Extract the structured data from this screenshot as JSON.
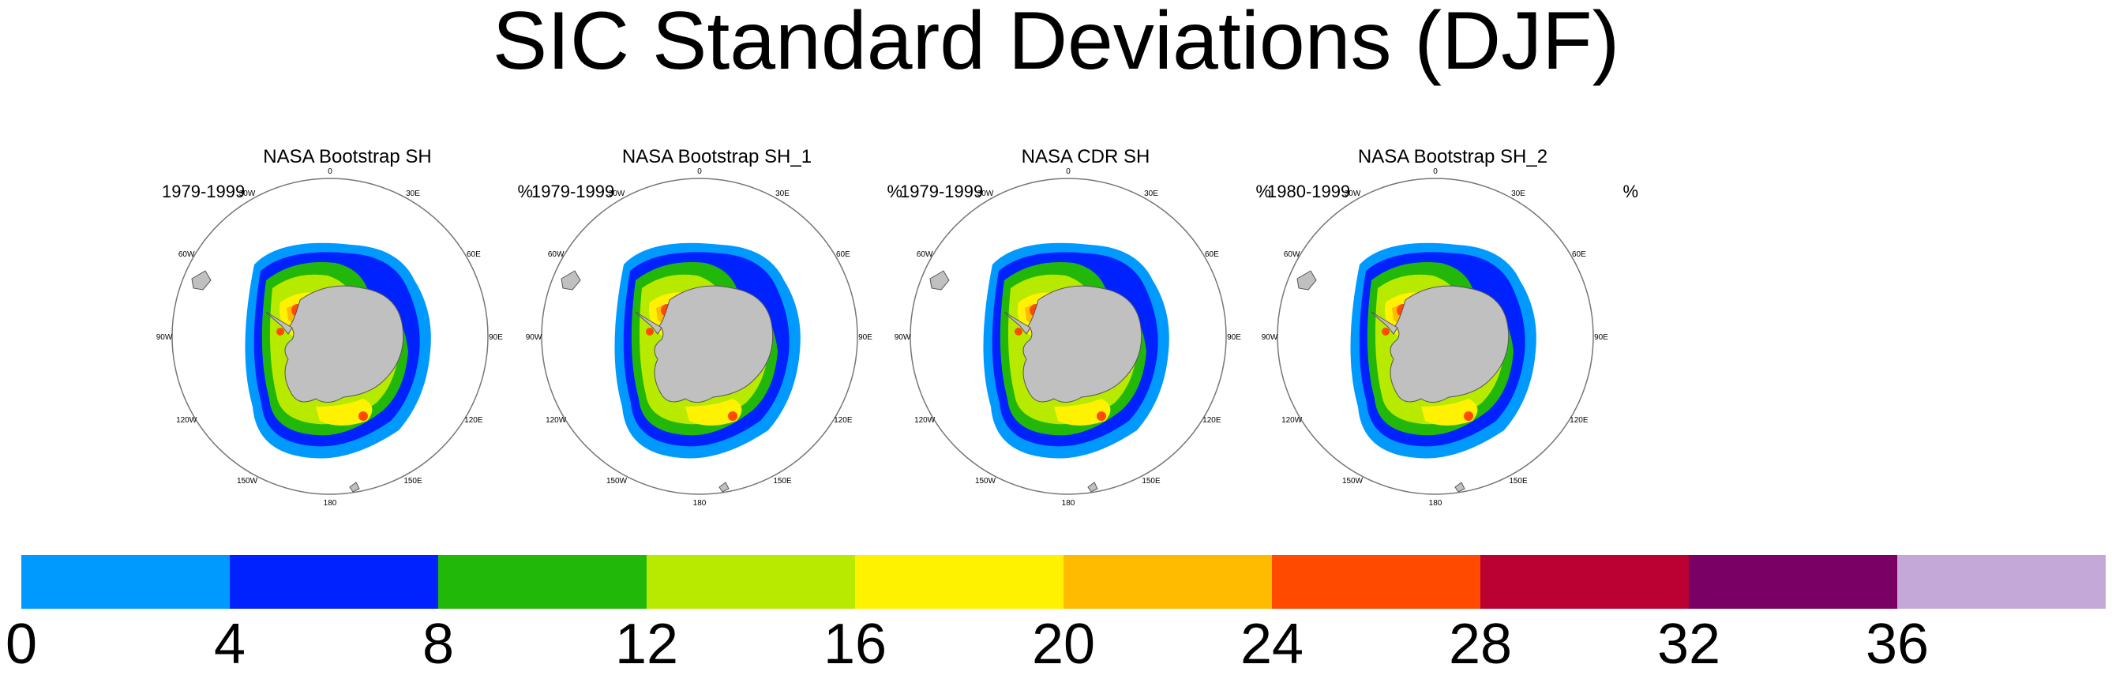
{
  "title": "SIC Standard Deviations (DJF)",
  "panels": [
    {
      "title": "NASA Bootstrap SH",
      "period": "1979-1999",
      "unit": "%"
    },
    {
      "title": "NASA Bootstrap SH_1",
      "period": "1979-1999",
      "unit": "%"
    },
    {
      "title": "NASA CDR SH",
      "period": "1979-1999",
      "unit": "%"
    },
    {
      "title": "NASA Bootstrap SH_2",
      "period": "1980-1999",
      "unit": "%"
    }
  ],
  "lon_labels": [
    "0",
    "30E",
    "60E",
    "90E",
    "120E",
    "150E",
    "180",
    "150W",
    "120W",
    "90W",
    "60W",
    "30W"
  ],
  "colorbar": {
    "colors": [
      "#009aff",
      "#0022ff",
      "#22b80a",
      "#b8ea00",
      "#fff200",
      "#ffbb00",
      "#ff4a00",
      "#bb0033",
      "#7a0066",
      "#c3a8d8"
    ],
    "labels": [
      "0",
      "4",
      "8",
      "12",
      "16",
      "20",
      "24",
      "28",
      "32",
      "36"
    ]
  },
  "land_color": "#c0c0c0"
}
